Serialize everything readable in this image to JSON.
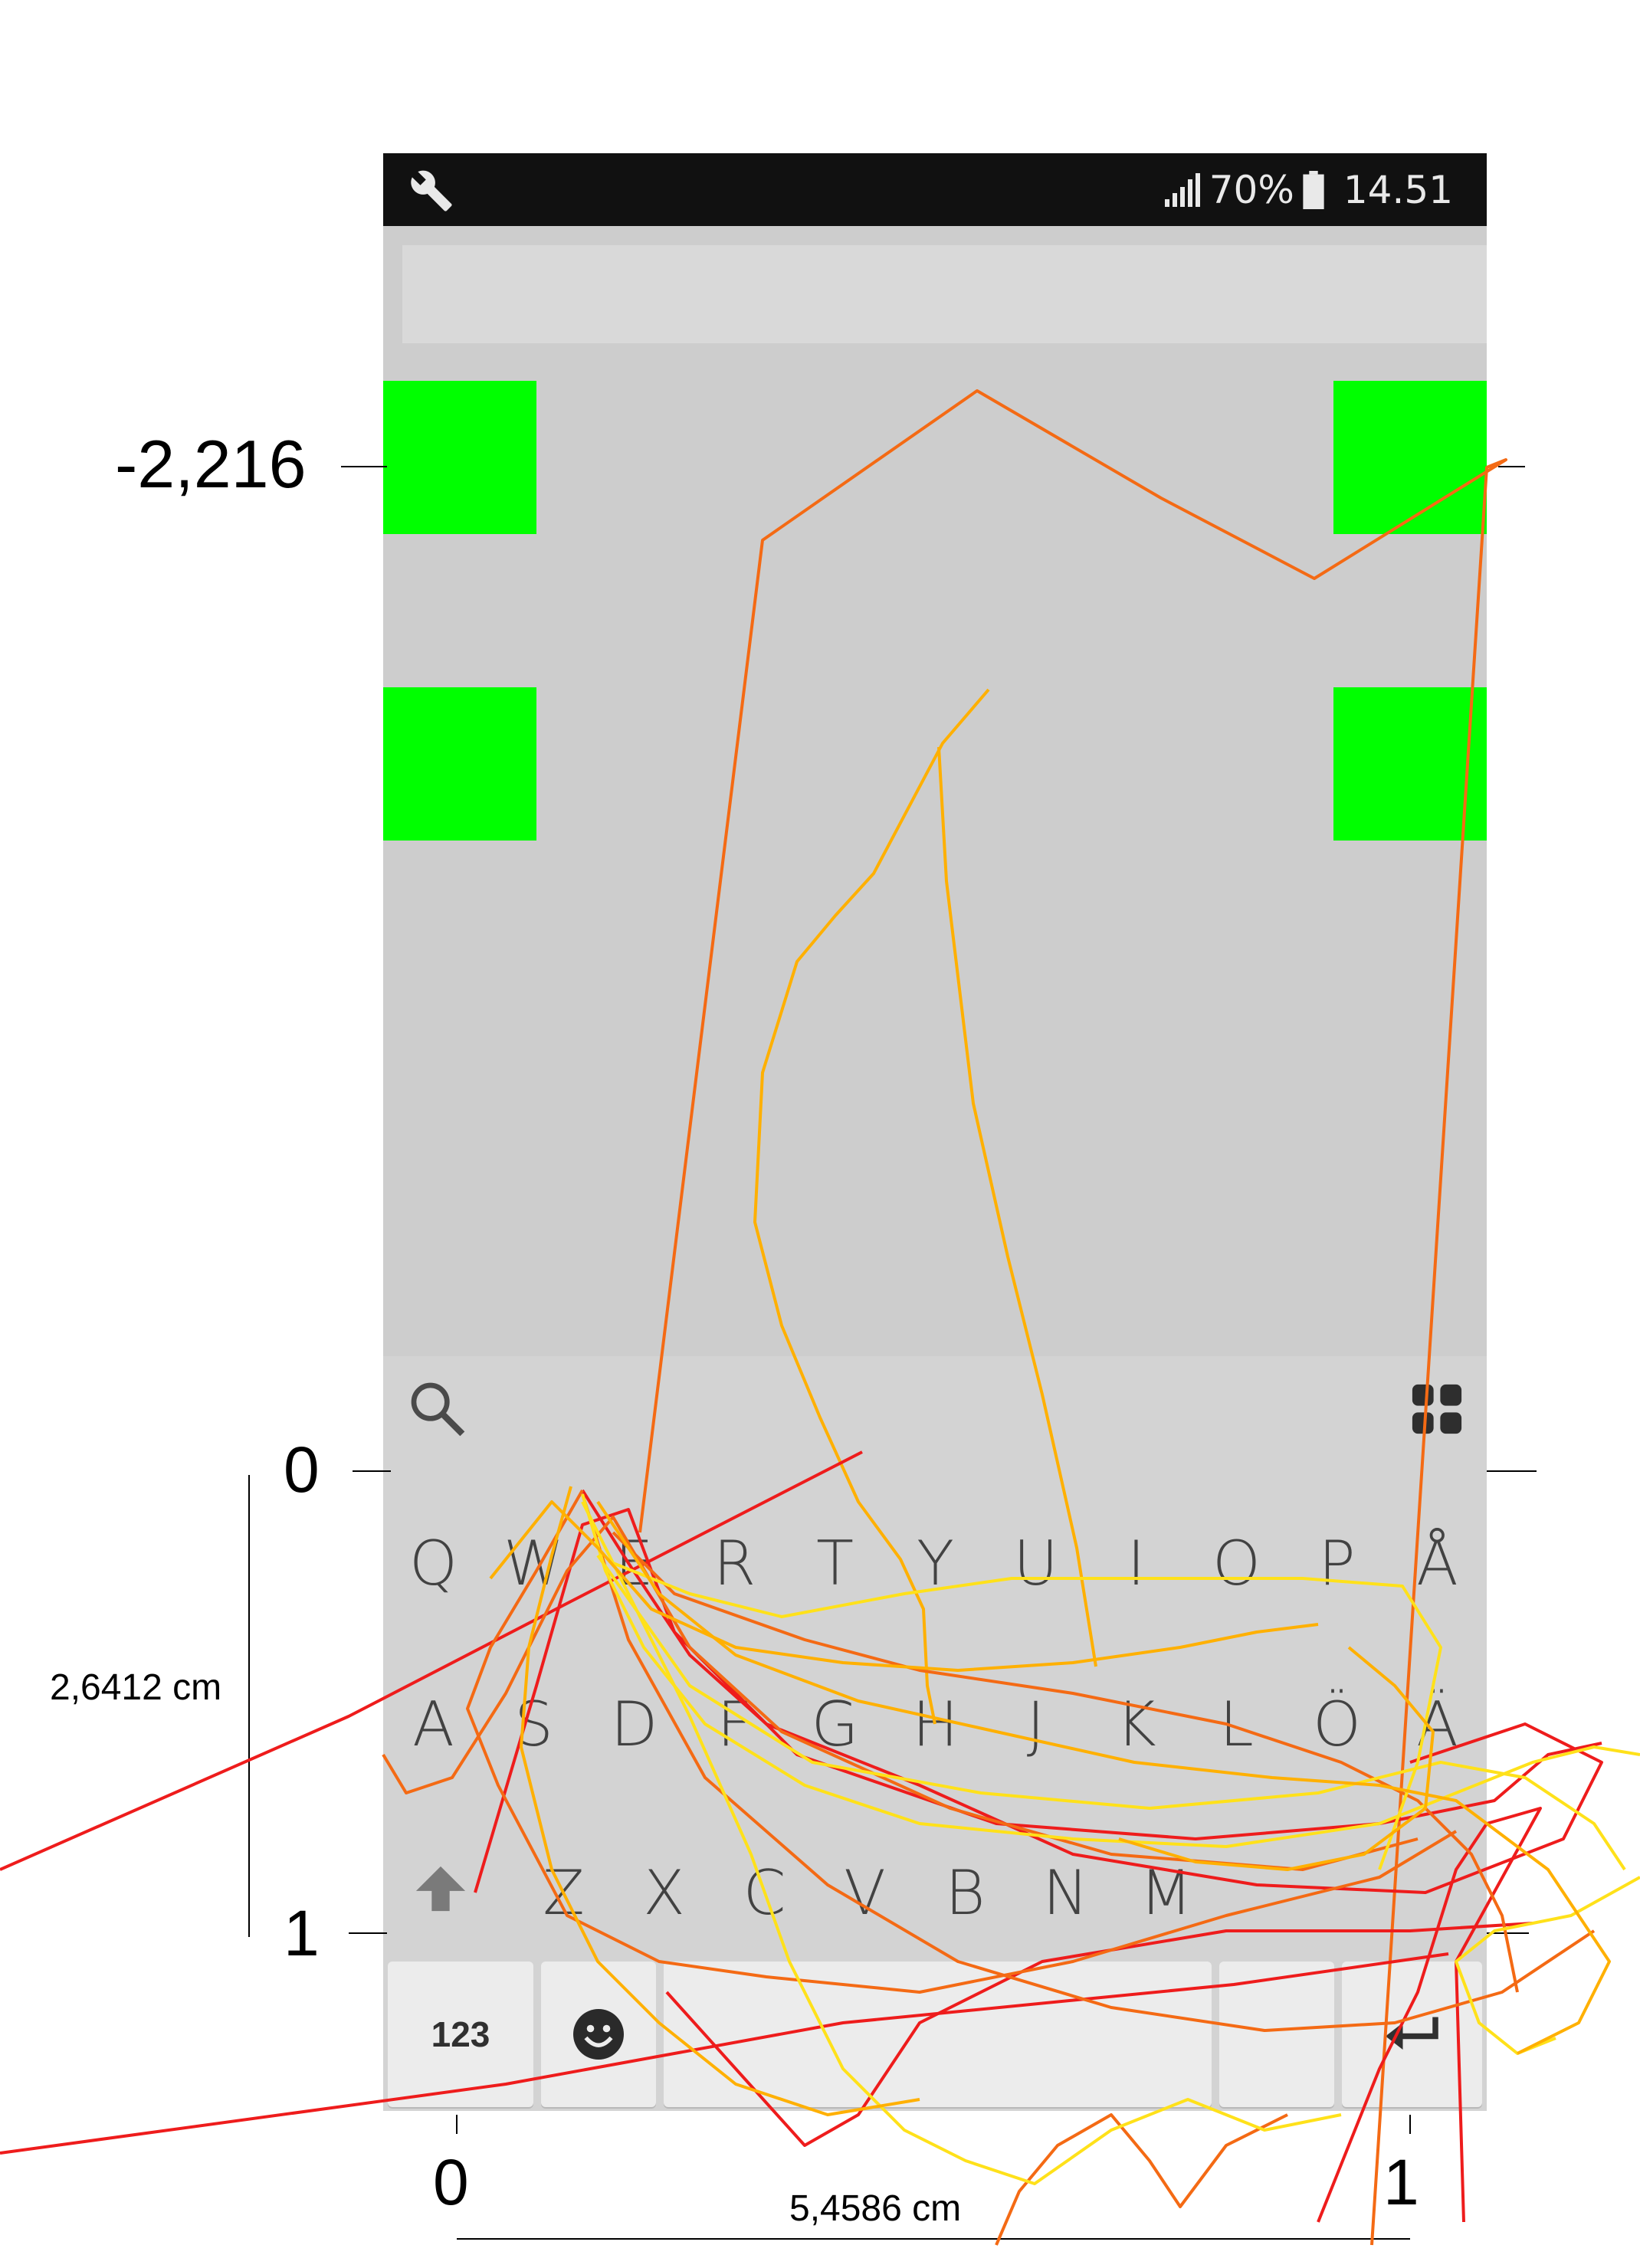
{
  "status_bar": {
    "wrench_icon": "wrench-icon",
    "signal_icon": "signal-bars-icon",
    "battery_text": "70%",
    "battery_icon": "battery-icon",
    "time": "14.51"
  },
  "app": {
    "text_field_value": "",
    "target_color": "#00ff00",
    "background_color": "#cdcdcd"
  },
  "keyboard": {
    "search_icon": "search-icon",
    "apps_icon": "grid-icon",
    "row1": [
      "Q",
      "W",
      "E",
      "R",
      "T",
      "Y",
      "U",
      "I",
      "O",
      "P",
      "Å"
    ],
    "row2": [
      "A",
      "S",
      "D",
      "F",
      "G",
      "H",
      "J",
      "K",
      "L",
      "Ö",
      "Ä"
    ],
    "row3": [
      "Z",
      "X",
      "C",
      "V",
      "B",
      "N",
      "M"
    ],
    "shift_icon": "shift-arrow-icon",
    "key_123": "123",
    "emoji_icon": "smiley-icon",
    "enter_icon": "enter-arrow-icon"
  },
  "annotations": {
    "y_top_label": "-2,216",
    "y_zero_label": "0",
    "y_one_label": "1",
    "x_zero_label": "0",
    "x_one_label": "1",
    "height_measure": "2,6412 cm",
    "width_measure": "5,4586 cm",
    "trace_colors": [
      "#ee1c1c",
      "#f46a14",
      "#ffb000",
      "#ffe11a"
    ]
  }
}
